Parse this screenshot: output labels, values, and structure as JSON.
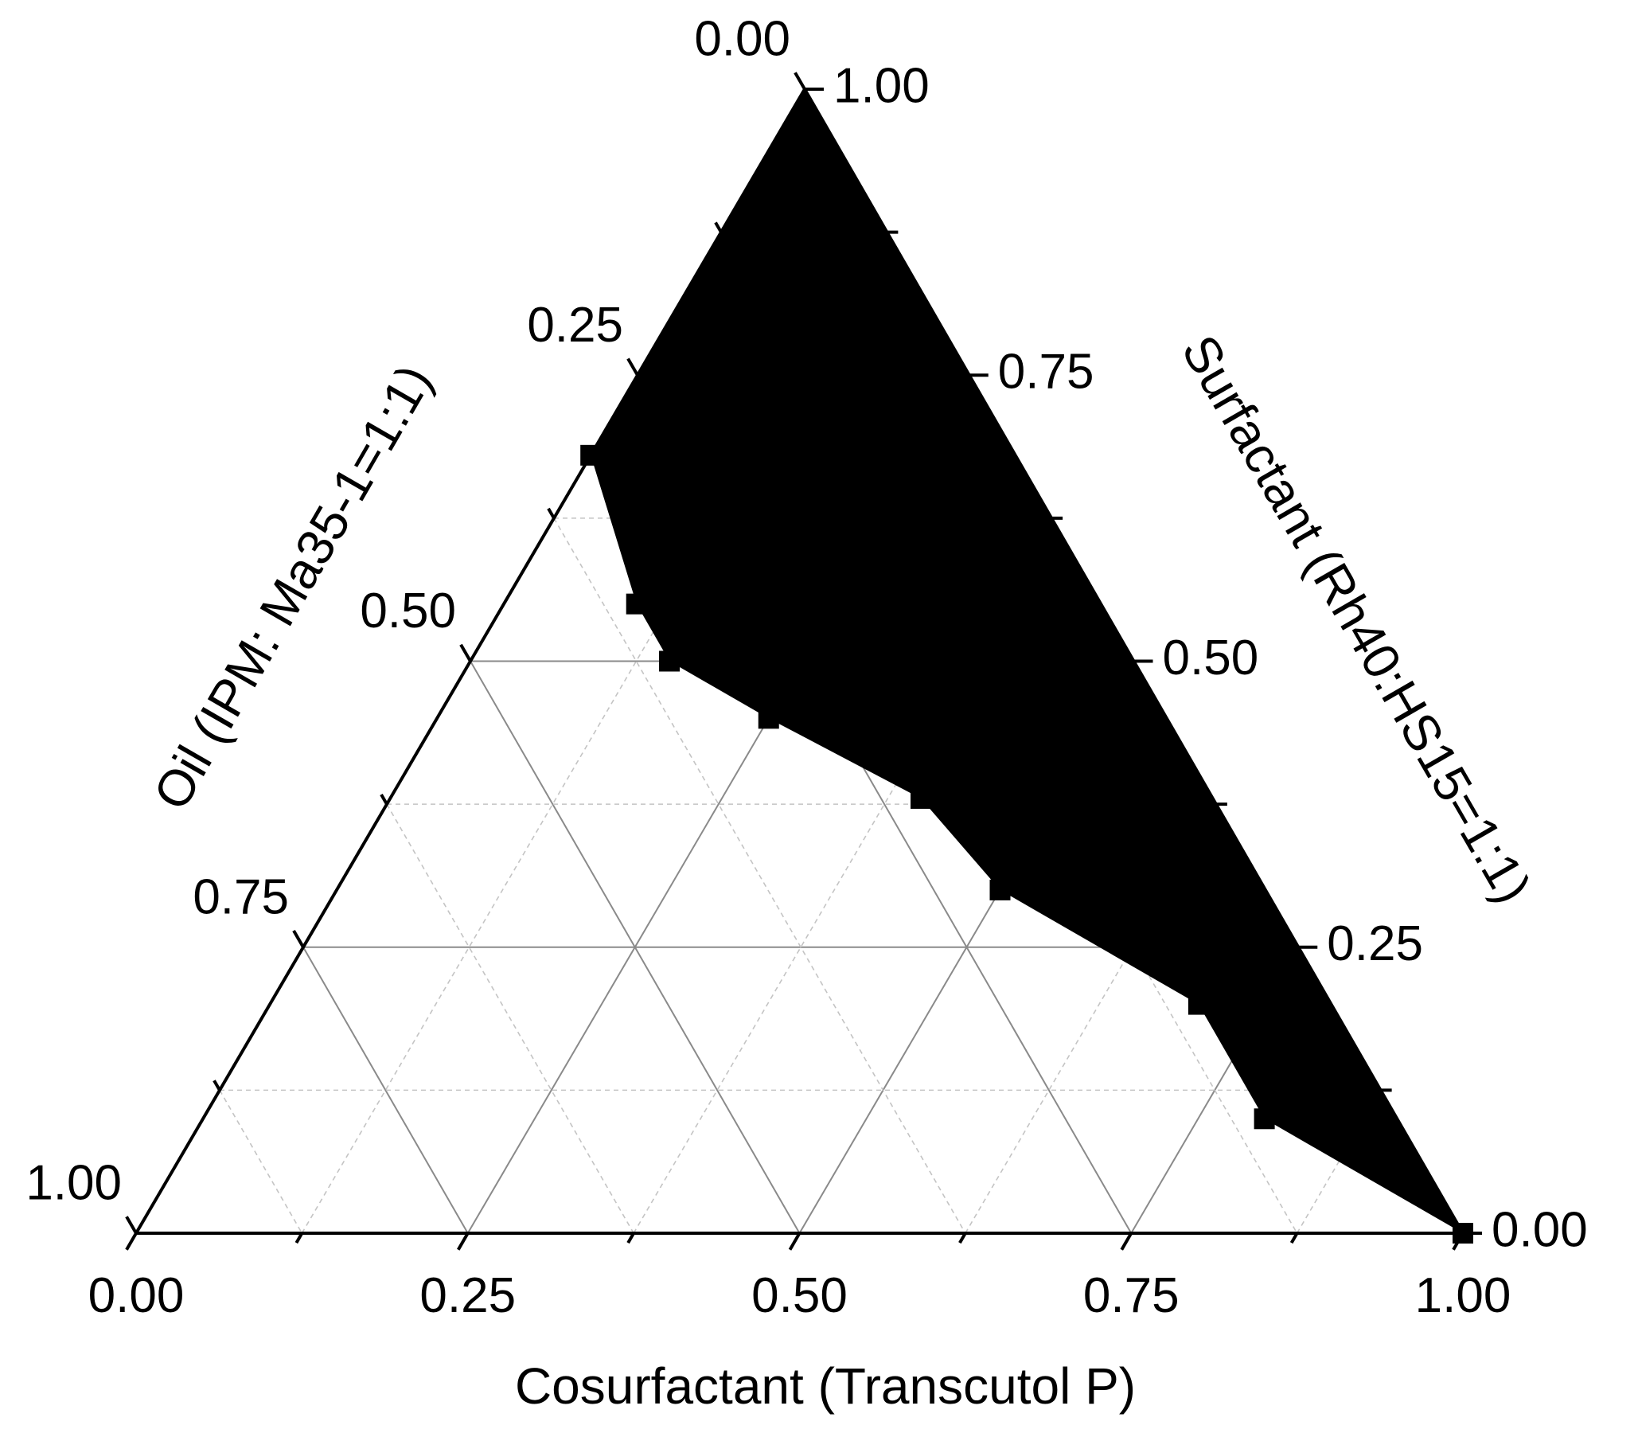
{
  "chart_data": {
    "type": "ternary",
    "color": "#000000",
    "grid": true,
    "axes": {
      "cosurfactant": {
        "label": "Cosurfactant (Transcutol P)",
        "ticks": [
          {
            "value": 0,
            "label": "0.00"
          },
          {
            "value": 0.25,
            "label": "0.25"
          },
          {
            "value": 0.5,
            "label": "0.50"
          },
          {
            "value": 0.75,
            "label": "0.75"
          },
          {
            "value": 1,
            "label": "1.00"
          }
        ]
      },
      "surfactant": {
        "label": "Surfactant (Rh40:HS15=1:1)",
        "ticks": [
          {
            "value": 0,
            "label": "0.00"
          },
          {
            "value": 0.25,
            "label": "0.25"
          },
          {
            "value": 0.5,
            "label": "0.50"
          },
          {
            "value": 0.75,
            "label": "0.75"
          },
          {
            "value": 1,
            "label": "1.00"
          }
        ]
      },
      "oil": {
        "label": "Oil (IPM: Ma35-1=1:1)",
        "ticks": [
          {
            "value": 0,
            "label": "0.00"
          },
          {
            "value": 0.25,
            "label": "0.25"
          },
          {
            "value": 0.5,
            "label": "0.50"
          },
          {
            "value": 0.75,
            "label": "0.75"
          },
          {
            "value": 1,
            "label": "1.00"
          }
        ]
      }
    },
    "minor_ticks": [
      0.125,
      0.375,
      0.625,
      0.875
    ],
    "points": {
      "surfactant": [
        0.68,
        0.55,
        0.5,
        0.45,
        0.38,
        0.3,
        0.2,
        0.1,
        0
      ],
      "cosurfactant": [
        0,
        0.1,
        0.15,
        0.25,
        0.4,
        0.5,
        0.7,
        0.8,
        1.0
      ],
      "oil": [
        0.32,
        0.35,
        0.35,
        0.3,
        0.22,
        0.2,
        0.1,
        0.1,
        0
      ]
    }
  }
}
